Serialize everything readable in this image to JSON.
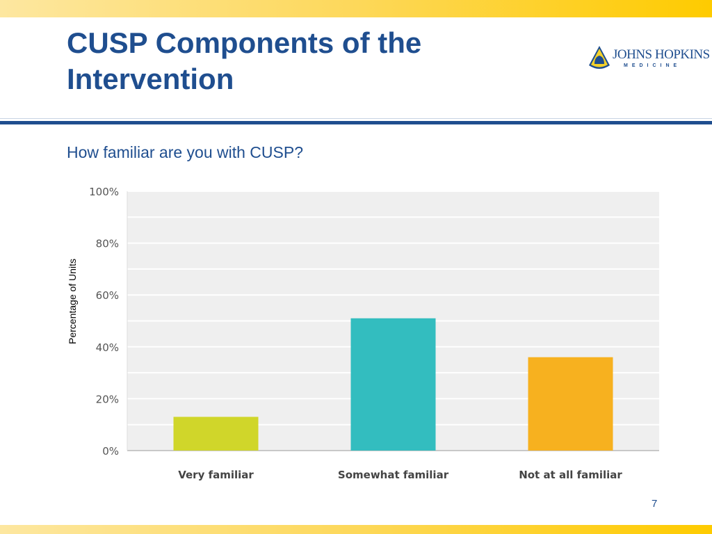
{
  "slide": {
    "title": "CUSP Components of the Intervention",
    "subtitle": "How familiar are you with CUSP?",
    "page_number": "7",
    "logo": {
      "name": "JOHNS HOPKINS",
      "sub": "MEDICINE"
    }
  },
  "colors": {
    "brand": "#1f4e8f",
    "accent": "#fecb00"
  },
  "chart_data": {
    "type": "bar",
    "title": "How familiar are you with CUSP?",
    "xlabel": "",
    "ylabel": "Percentage of Units",
    "categories": [
      "Very familiar",
      "Somewhat familiar",
      "Not at all familiar"
    ],
    "values": [
      13,
      51,
      36
    ],
    "colors": [
      "#d0d62a",
      "#33bdbf",
      "#f7b11f"
    ],
    "ylim": [
      0,
      100
    ],
    "yticks": [
      0,
      20,
      40,
      60,
      80,
      100
    ],
    "ytick_labels": [
      "0%",
      "20%",
      "40%",
      "60%",
      "80%",
      "100%"
    ],
    "grid": true,
    "legend": "none"
  }
}
